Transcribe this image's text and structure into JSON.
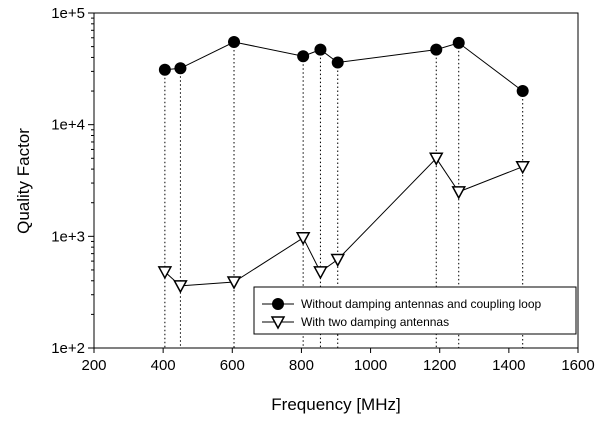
{
  "chart_data": {
    "type": "line",
    "xlabel": "Frequency [MHz]",
    "ylabel": "Quality Factor",
    "xlim": [
      200,
      1600
    ],
    "ylim": [
      100,
      100000
    ],
    "yscale": "log",
    "xticks": [
      "200",
      "400",
      "600",
      "800",
      "1000",
      "1200",
      "1400",
      "1600"
    ],
    "yticks": [
      "1e+2",
      "1e+3",
      "1e+4",
      "1e+5"
    ],
    "grid": false,
    "legend_position": "lower-right",
    "series": [
      {
        "name": "Without damping antennas and coupling loop",
        "marker": "filled-circle",
        "x": [
          405,
          450,
          605,
          805,
          855,
          905,
          1190,
          1255,
          1440
        ],
        "y": [
          31000,
          32000,
          55000,
          41000,
          47000,
          36000,
          47000,
          54000,
          20000
        ]
      },
      {
        "name": "With two damping antennas",
        "marker": "open-triangle-down",
        "x": [
          405,
          450,
          605,
          805,
          855,
          905,
          1190,
          1255,
          1440
        ],
        "y": [
          480,
          360,
          390,
          970,
          480,
          620,
          5000,
          2500,
          4200
        ]
      }
    ],
    "dotted_drop_lines": true
  }
}
